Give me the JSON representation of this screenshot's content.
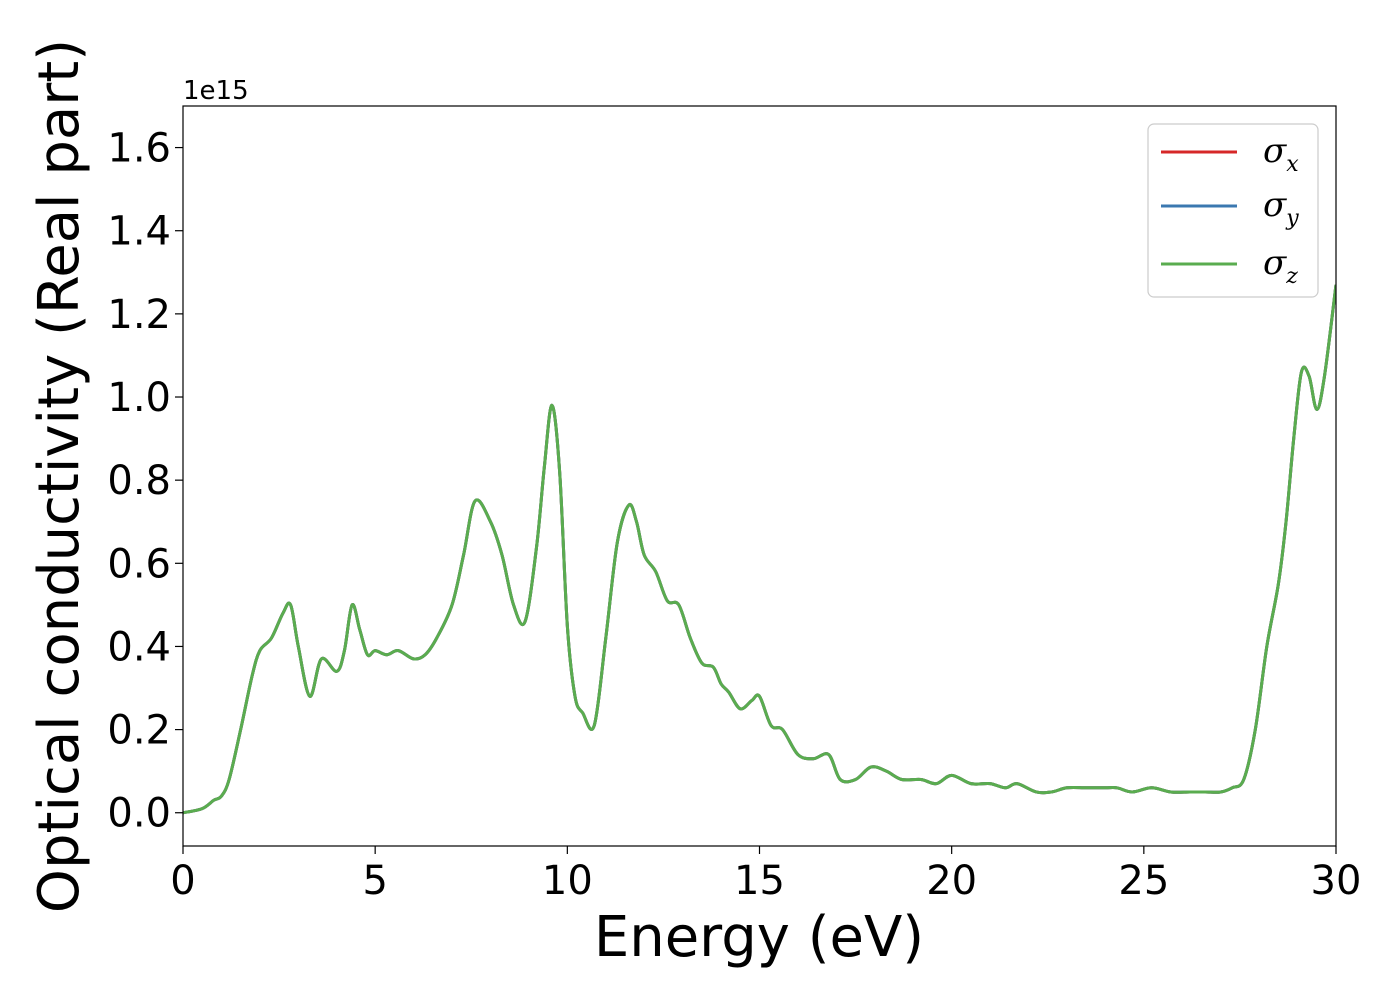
{
  "chart_data": {
    "type": "line",
    "xlabel": "Energy (eV)",
    "ylabel": "Optical conductivity (Real part)",
    "y_offset_label": "1e15",
    "xlim": [
      0,
      30
    ],
    "ylim": [
      -0.08,
      1.7
    ],
    "xticks": [
      0,
      5,
      10,
      15,
      20,
      25,
      30
    ],
    "xtick_labels": [
      "0",
      "5",
      "10",
      "15",
      "20",
      "25",
      "30"
    ],
    "yticks": [
      0.0,
      0.2,
      0.4,
      0.6,
      0.8,
      1.0,
      1.2,
      1.4,
      1.6
    ],
    "ytick_labels": [
      "0.0",
      "0.2",
      "0.4",
      "0.6",
      "0.8",
      "1.0",
      "1.2",
      "1.4",
      "1.6"
    ],
    "grid": false,
    "legend_position": "top-right",
    "x": [
      0.0,
      0.5,
      0.8,
      1.0,
      1.2,
      1.5,
      1.8,
      2.0,
      2.3,
      2.6,
      2.8,
      3.0,
      3.3,
      3.6,
      4.0,
      4.2,
      4.4,
      4.6,
      4.8,
      5.0,
      5.3,
      5.6,
      6.0,
      6.3,
      6.6,
      7.0,
      7.3,
      7.6,
      8.0,
      8.3,
      8.6,
      8.9,
      9.2,
      9.4,
      9.6,
      9.8,
      10.0,
      10.2,
      10.4,
      10.7,
      11.0,
      11.3,
      11.6,
      11.8,
      12.0,
      12.3,
      12.6,
      12.9,
      13.2,
      13.5,
      13.8,
      14.0,
      14.2,
      14.5,
      14.8,
      15.0,
      15.3,
      15.6,
      16.0,
      16.4,
      16.8,
      17.1,
      17.5,
      17.9,
      18.3,
      18.7,
      19.2,
      19.6,
      20.0,
      20.5,
      21.0,
      21.4,
      21.7,
      22.2,
      22.6,
      23.0,
      23.5,
      24.0,
      24.3,
      24.7,
      25.2,
      25.7,
      26.2,
      26.6,
      27.0,
      27.3,
      27.6,
      27.9,
      28.2,
      28.5,
      28.7,
      28.9,
      29.1,
      29.3,
      29.5,
      29.7,
      30.0
    ],
    "series": [
      {
        "name": "σx",
        "name_base": "σ",
        "name_sub": "x",
        "color": "#d62728",
        "values": [
          0.0,
          0.01,
          0.03,
          0.04,
          0.08,
          0.2,
          0.33,
          0.39,
          0.42,
          0.48,
          0.5,
          0.4,
          0.28,
          0.37,
          0.34,
          0.39,
          0.5,
          0.44,
          0.38,
          0.39,
          0.38,
          0.39,
          0.37,
          0.38,
          0.42,
          0.5,
          0.62,
          0.75,
          0.7,
          0.62,
          0.5,
          0.46,
          0.64,
          0.83,
          0.98,
          0.82,
          0.45,
          0.28,
          0.24,
          0.21,
          0.42,
          0.65,
          0.74,
          0.7,
          0.62,
          0.58,
          0.51,
          0.5,
          0.42,
          0.36,
          0.35,
          0.31,
          0.29,
          0.25,
          0.27,
          0.28,
          0.21,
          0.2,
          0.14,
          0.13,
          0.14,
          0.08,
          0.08,
          0.11,
          0.1,
          0.08,
          0.08,
          0.07,
          0.09,
          0.07,
          0.07,
          0.06,
          0.07,
          0.05,
          0.05,
          0.06,
          0.06,
          0.06,
          0.06,
          0.05,
          0.06,
          0.05,
          0.05,
          0.05,
          0.05,
          0.06,
          0.08,
          0.2,
          0.4,
          0.55,
          0.7,
          0.9,
          1.06,
          1.05,
          0.97,
          1.05,
          1.27
        ]
      },
      {
        "name": "σy",
        "name_base": "σ",
        "name_sub": "y",
        "color": "#3b78b0",
        "values": [
          0.0,
          0.01,
          0.03,
          0.04,
          0.08,
          0.2,
          0.33,
          0.39,
          0.42,
          0.48,
          0.5,
          0.4,
          0.28,
          0.37,
          0.34,
          0.39,
          0.5,
          0.44,
          0.38,
          0.39,
          0.38,
          0.39,
          0.37,
          0.38,
          0.42,
          0.5,
          0.62,
          0.75,
          0.7,
          0.62,
          0.5,
          0.46,
          0.64,
          0.83,
          0.98,
          0.82,
          0.45,
          0.28,
          0.24,
          0.21,
          0.42,
          0.65,
          0.74,
          0.7,
          0.62,
          0.58,
          0.51,
          0.5,
          0.42,
          0.36,
          0.35,
          0.31,
          0.29,
          0.25,
          0.27,
          0.28,
          0.21,
          0.2,
          0.14,
          0.13,
          0.14,
          0.08,
          0.08,
          0.11,
          0.1,
          0.08,
          0.08,
          0.07,
          0.09,
          0.07,
          0.07,
          0.06,
          0.07,
          0.05,
          0.05,
          0.06,
          0.06,
          0.06,
          0.06,
          0.05,
          0.06,
          0.05,
          0.05,
          0.05,
          0.05,
          0.06,
          0.08,
          0.2,
          0.4,
          0.55,
          0.7,
          0.9,
          1.06,
          1.05,
          0.97,
          1.05,
          1.27
        ]
      },
      {
        "name": "σz",
        "name_base": "σ",
        "name_sub": "z",
        "color": "#5aac4f",
        "values": [
          0.0,
          0.01,
          0.03,
          0.04,
          0.08,
          0.2,
          0.33,
          0.39,
          0.42,
          0.48,
          0.5,
          0.4,
          0.28,
          0.37,
          0.34,
          0.39,
          0.5,
          0.44,
          0.38,
          0.39,
          0.38,
          0.39,
          0.37,
          0.38,
          0.42,
          0.5,
          0.62,
          0.75,
          0.7,
          0.62,
          0.5,
          0.46,
          0.64,
          0.83,
          0.98,
          0.82,
          0.45,
          0.28,
          0.24,
          0.21,
          0.42,
          0.65,
          0.74,
          0.7,
          0.62,
          0.58,
          0.51,
          0.5,
          0.42,
          0.36,
          0.35,
          0.31,
          0.29,
          0.25,
          0.27,
          0.28,
          0.21,
          0.2,
          0.14,
          0.13,
          0.14,
          0.08,
          0.08,
          0.11,
          0.1,
          0.08,
          0.08,
          0.07,
          0.09,
          0.07,
          0.07,
          0.06,
          0.07,
          0.05,
          0.05,
          0.06,
          0.06,
          0.06,
          0.06,
          0.05,
          0.06,
          0.05,
          0.05,
          0.05,
          0.05,
          0.06,
          0.08,
          0.2,
          0.4,
          0.55,
          0.7,
          0.9,
          1.06,
          1.05,
          0.97,
          1.05,
          1.27
        ]
      }
    ]
  }
}
